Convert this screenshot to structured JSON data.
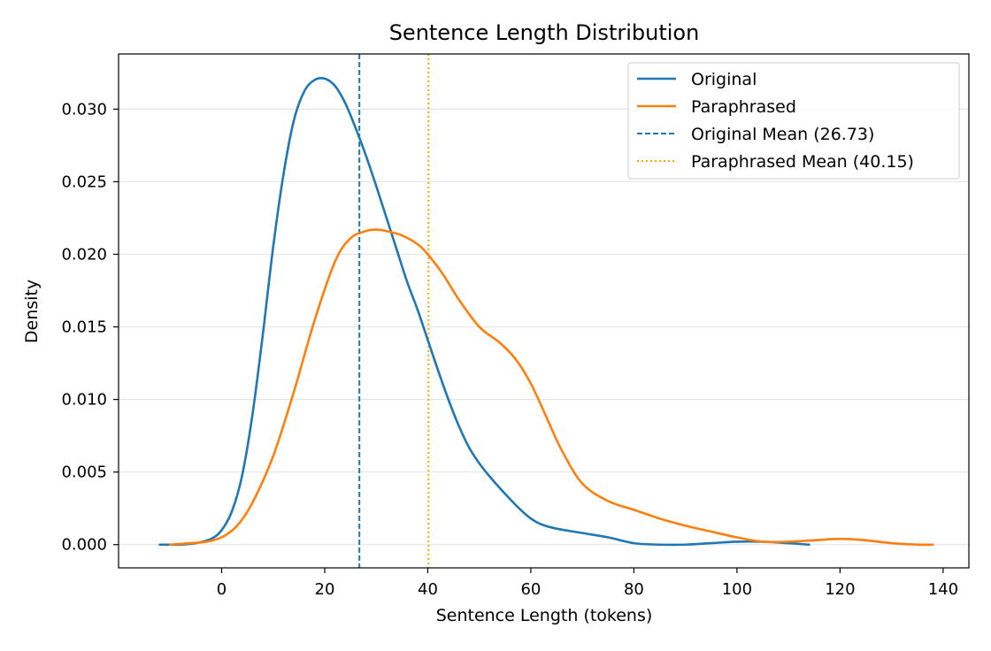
{
  "chart_data": {
    "type": "line",
    "title": "Sentence Length Distribution",
    "xlabel": "Sentence Length (tokens)",
    "ylabel": "Density",
    "xlim": [
      -20.0,
      145.0
    ],
    "ylim": [
      -0.0016,
      0.0338
    ],
    "xticks": [
      0,
      20,
      40,
      60,
      80,
      100,
      120,
      140
    ],
    "xtick_labels": [
      "0",
      "20",
      "40",
      "60",
      "80",
      "100",
      "120",
      "140"
    ],
    "yticks": [
      0.0,
      0.005,
      0.01,
      0.015,
      0.02,
      0.025,
      0.03
    ],
    "ytick_labels": [
      "0.000",
      "0.005",
      "0.010",
      "0.015",
      "0.020",
      "0.025",
      "0.030"
    ],
    "grid": "horizontal",
    "legend_position": "top-right",
    "series": [
      {
        "name": "Original",
        "color": "#1f77b4",
        "style": "solid",
        "x": [
          -12,
          -8,
          -5,
          -2,
          0,
          2,
          4,
          6,
          8,
          10,
          12,
          14,
          16,
          18,
          20,
          22,
          24,
          26,
          28,
          30,
          32,
          34,
          36,
          38,
          40,
          42,
          44,
          46,
          48,
          50,
          52,
          55,
          58,
          60,
          62,
          65,
          70,
          75,
          80,
          85,
          90,
          95,
          100,
          105,
          110,
          114
        ],
        "y": [
          0.0,
          0.0,
          0.0001,
          0.0004,
          0.001,
          0.0023,
          0.0048,
          0.009,
          0.0145,
          0.0205,
          0.0255,
          0.0292,
          0.0312,
          0.032,
          0.0321,
          0.0316,
          0.0304,
          0.0287,
          0.0268,
          0.0247,
          0.0225,
          0.0203,
          0.0181,
          0.0162,
          0.0141,
          0.012,
          0.01,
          0.0082,
          0.0067,
          0.0056,
          0.0047,
          0.0035,
          0.0024,
          0.0018,
          0.0014,
          0.0011,
          0.0008,
          0.0005,
          0.0001,
          0.0,
          0.0,
          0.0001,
          0.0002,
          0.0002,
          0.0001,
          0.0
        ]
      },
      {
        "name": "Paraphrased",
        "color": "#ff7f0e",
        "style": "solid",
        "x": [
          -10,
          -6,
          -3,
          0,
          3,
          6,
          10,
          14,
          18,
          22,
          25,
          28,
          30,
          32,
          35,
          38,
          40,
          43,
          46,
          50,
          54,
          57,
          60,
          63,
          66,
          70,
          75,
          80,
          85,
          90,
          95,
          100,
          105,
          110,
          115,
          120,
          125,
          130,
          135,
          138
        ],
        "y": [
          0.0,
          0.0001,
          0.0002,
          0.0005,
          0.0013,
          0.0029,
          0.0061,
          0.0105,
          0.0154,
          0.0195,
          0.0211,
          0.0216,
          0.0217,
          0.0216,
          0.0213,
          0.0207,
          0.02,
          0.0186,
          0.0169,
          0.015,
          0.0139,
          0.0128,
          0.0111,
          0.0088,
          0.0065,
          0.0042,
          0.003,
          0.0024,
          0.0018,
          0.0013,
          0.0009,
          0.0005,
          0.0002,
          0.0002,
          0.0003,
          0.0004,
          0.0003,
          0.0001,
          0.0,
          0.0
        ]
      }
    ],
    "reference_lines": [
      {
        "name": "Original Mean (26.73)",
        "x": 26.73,
        "color": "#1f77b4",
        "style": "dashed"
      },
      {
        "name": "Paraphrased Mean (40.15)",
        "x": 40.15,
        "color": "#ffa500",
        "style": "dotted"
      }
    ]
  }
}
